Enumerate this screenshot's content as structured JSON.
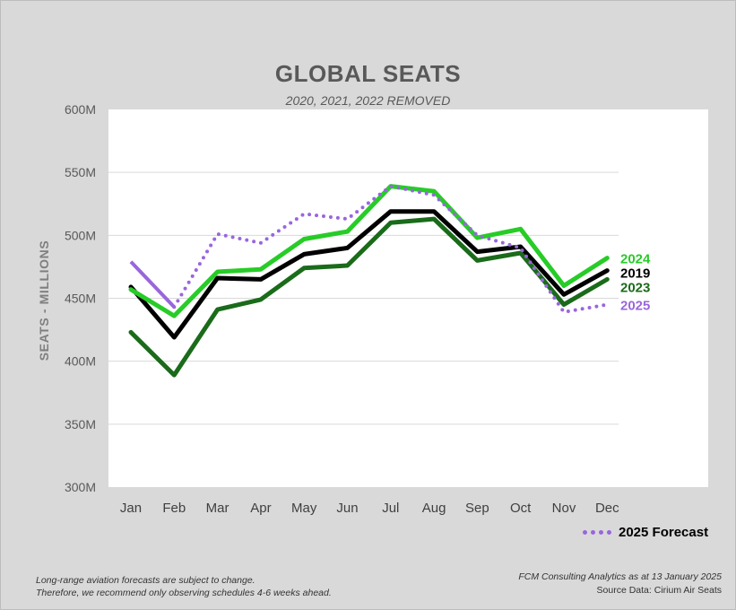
{
  "chart_data": {
    "type": "line",
    "title": "GLOBAL SEATS",
    "subtitle": "2020, 2021, 2022 REMOVED",
    "ylabel": "SEATS - MILLIONS",
    "ylim": [
      300,
      600
    ],
    "yticks": [
      300,
      350,
      400,
      450,
      500,
      550,
      600
    ],
    "ytick_labels": [
      "300M",
      "350M",
      "400M",
      "450M",
      "500M",
      "550M",
      "600M"
    ],
    "categories": [
      "Jan",
      "Feb",
      "Mar",
      "Apr",
      "May",
      "Jun",
      "Jul",
      "Aug",
      "Sep",
      "Oct",
      "Nov",
      "Dec"
    ],
    "grid": true,
    "series": [
      {
        "name": "2023",
        "color": "#1a6b1a",
        "style": "solid",
        "values": [
          423,
          389,
          441,
          449,
          474,
          476,
          510,
          513,
          480,
          486,
          445,
          465
        ]
      },
      {
        "name": "2019",
        "color": "#000000",
        "style": "solid",
        "values": [
          459,
          419,
          466,
          465,
          485,
          490,
          519,
          519,
          487,
          491,
          453,
          472
        ]
      },
      {
        "name": "2024",
        "color": "#27cc27",
        "style": "solid",
        "values": [
          457,
          436,
          471,
          473,
          497,
          503,
          539,
          535,
          498,
          505,
          460,
          482
        ]
      },
      {
        "name": "2025",
        "color": "#9966dd",
        "style": "mixed",
        "values": [
          479,
          443,
          501,
          494,
          517,
          513,
          539,
          532,
          500,
          490,
          439,
          445
        ]
      }
    ],
    "legend": {
      "label": "2025 Forecast",
      "position": "bottom-right"
    }
  },
  "footer": {
    "left_line1": "Long-range aviation forecasts are subject to change.",
    "left_line2": "Therefore, we recommend only observing schedules 4-6 weeks ahead.",
    "right_line1": "FCM Consulting Analytics as at 13 January 2025",
    "right_line2": "Source Data: Cirium Air Seats"
  }
}
